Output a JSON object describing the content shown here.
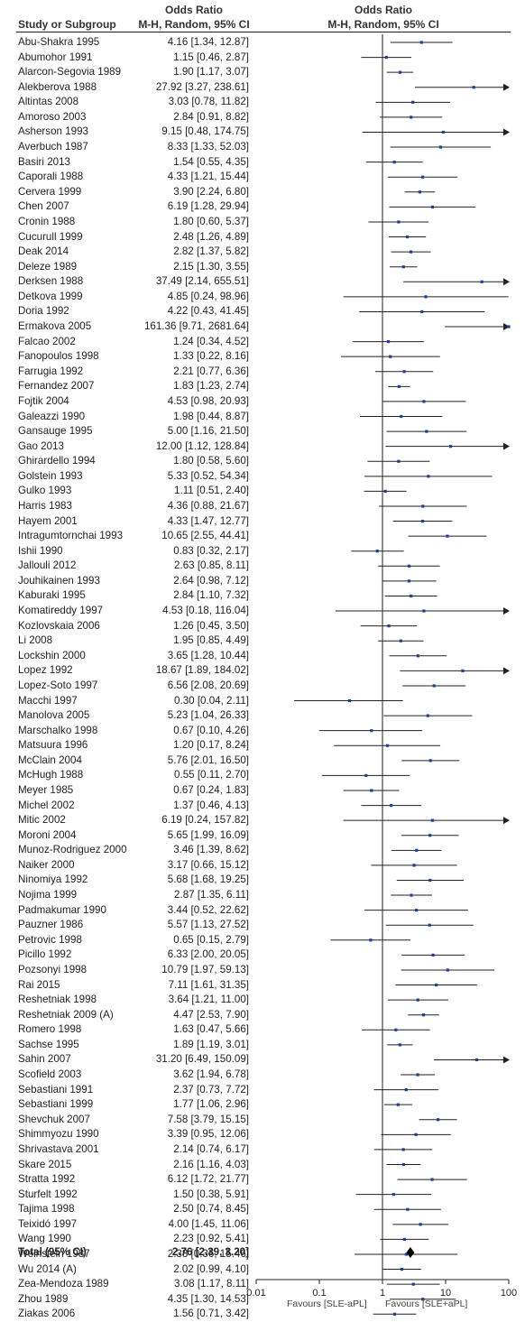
{
  "header": {
    "col_study": "Study or Subgroup",
    "col_or_title": "Odds Ratio",
    "col_or_method": "M-H, Random, 95% CI",
    "plot_title": "Odds Ratio",
    "plot_method": "M-H, Random, 95% CI"
  },
  "chart_data": {
    "type": "forest",
    "x_scale": "log",
    "xlim": [
      0.01,
      100
    ],
    "x_ticks": [
      "0.01",
      "0.1",
      "1",
      "10",
      "100"
    ],
    "favours_left": "Favours [SLE-aPL]",
    "favours_right": "Favours [SLE+aPL]",
    "studies": [
      {
        "label": "Abu-Shakra 1995",
        "or_text": "4.16 [1.34, 12.87]",
        "or": 4.16,
        "lo": 1.34,
        "hi": 12.87
      },
      {
        "label": "Abumohor 1991",
        "or_text": "1.15 [0.46, 2.87]",
        "or": 1.15,
        "lo": 0.46,
        "hi": 2.87
      },
      {
        "label": "Alarcon-Segovia 1989",
        "or_text": "1.90 [1.17, 3.07]",
        "or": 1.9,
        "lo": 1.17,
        "hi": 3.07
      },
      {
        "label": "Alekberova 1988",
        "or_text": "27.92 [3.27, 238.61]",
        "or": 27.92,
        "lo": 3.27,
        "hi": 238.61
      },
      {
        "label": "Altintas 2008",
        "or_text": "3.03 [0.78, 11.82]",
        "or": 3.03,
        "lo": 0.78,
        "hi": 11.82
      },
      {
        "label": "Amoroso 2003",
        "or_text": "2.84 [0.91, 8.82]",
        "or": 2.84,
        "lo": 0.91,
        "hi": 8.82
      },
      {
        "label": "Asherson 1993",
        "or_text": "9.15 [0.48, 174.75]",
        "or": 9.15,
        "lo": 0.48,
        "hi": 174.75
      },
      {
        "label": "Averbuch 1987",
        "or_text": "8.33 [1.33, 52.03]",
        "or": 8.33,
        "lo": 1.33,
        "hi": 52.03
      },
      {
        "label": "Basiri 2013",
        "or_text": "1.54 [0.55, 4.35]",
        "or": 1.54,
        "lo": 0.55,
        "hi": 4.35
      },
      {
        "label": "Caporali 1988",
        "or_text": "4.33 [1.21, 15.44]",
        "or": 4.33,
        "lo": 1.21,
        "hi": 15.44
      },
      {
        "label": "Cervera 1999",
        "or_text": "3.90 [2.24, 6.80]",
        "or": 3.9,
        "lo": 2.24,
        "hi": 6.8
      },
      {
        "label": "Chen 2007",
        "or_text": "6.19 [1.28, 29.94]",
        "or": 6.19,
        "lo": 1.28,
        "hi": 29.94
      },
      {
        "label": "Cronin 1988",
        "or_text": "1.80 [0.60, 5.37]",
        "or": 1.8,
        "lo": 0.6,
        "hi": 5.37
      },
      {
        "label": "Cucurull 1999",
        "or_text": "2.48 [1.26, 4.89]",
        "or": 2.48,
        "lo": 1.26,
        "hi": 4.89
      },
      {
        "label": "Deak 2014",
        "or_text": "2.82 [1.37, 5.82]",
        "or": 2.82,
        "lo": 1.37,
        "hi": 5.82
      },
      {
        "label": "Deleze 1989",
        "or_text": "2.15 [1.30, 3.55]",
        "or": 2.15,
        "lo": 1.3,
        "hi": 3.55
      },
      {
        "label": "Derksen 1988",
        "or_text": "37.49 [2.14, 655.51]",
        "or": 37.49,
        "lo": 2.14,
        "hi": 655.51
      },
      {
        "label": "Detkova 1999",
        "or_text": "4.85 [0.24, 98.96]",
        "or": 4.85,
        "lo": 0.24,
        "hi": 98.96
      },
      {
        "label": "Doria 1992",
        "or_text": "4.22 [0.43, 41.45]",
        "or": 4.22,
        "lo": 0.43,
        "hi": 41.45
      },
      {
        "label": "Ermakova 2005",
        "or_text": "161.36 [9.71, 2681.64]",
        "or": 161.36,
        "lo": 9.71,
        "hi": 2681.64
      },
      {
        "label": "Falcao 2002",
        "or_text": "1.24 [0.34, 4.52]",
        "or": 1.24,
        "lo": 0.34,
        "hi": 4.52
      },
      {
        "label": "Fanopoulos 1998",
        "or_text": "1.33 [0.22, 8.16]",
        "or": 1.33,
        "lo": 0.22,
        "hi": 8.16
      },
      {
        "label": "Farrugia 1992",
        "or_text": "2.21 [0.77, 6.36]",
        "or": 2.21,
        "lo": 0.77,
        "hi": 6.36
      },
      {
        "label": "Fernandez 2007",
        "or_text": "1.83 [1.23, 2.74]",
        "or": 1.83,
        "lo": 1.23,
        "hi": 2.74
      },
      {
        "label": "Fojtik 2004",
        "or_text": "4.53 [0.98, 20.93]",
        "or": 4.53,
        "lo": 0.98,
        "hi": 20.93
      },
      {
        "label": "Galeazzi 1990",
        "or_text": "1.98 [0.44, 8.87]",
        "or": 1.98,
        "lo": 0.44,
        "hi": 8.87
      },
      {
        "label": "Gansauge 1995",
        "or_text": "5.00 [1.16, 21.50]",
        "or": 5.0,
        "lo": 1.16,
        "hi": 21.5
      },
      {
        "label": "Gao 2013",
        "or_text": "12.00 [1.12, 128.84]",
        "or": 12.0,
        "lo": 1.12,
        "hi": 128.84
      },
      {
        "label": "Ghirardello 1994",
        "or_text": "1.80 [0.58, 5.60]",
        "or": 1.8,
        "lo": 0.58,
        "hi": 5.6
      },
      {
        "label": "Golstein 1993",
        "or_text": "5.33 [0.52, 54.34]",
        "or": 5.33,
        "lo": 0.52,
        "hi": 54.34
      },
      {
        "label": "Gulko 1993",
        "or_text": "1.11 [0.51, 2.40]",
        "or": 1.11,
        "lo": 0.51,
        "hi": 2.4
      },
      {
        "label": "Harris 1983",
        "or_text": "4.36 [0.88, 21.67]",
        "or": 4.36,
        "lo": 0.88,
        "hi": 21.67
      },
      {
        "label": "Hayem 2001",
        "or_text": "4.33 [1.47, 12.77]",
        "or": 4.33,
        "lo": 1.47,
        "hi": 12.77
      },
      {
        "label": "Intragumtornchai 1993",
        "or_text": "10.65 [2.55, 44.41]",
        "or": 10.65,
        "lo": 2.55,
        "hi": 44.41
      },
      {
        "label": "Ishii 1990",
        "or_text": "0.83 [0.32, 2.17]",
        "or": 0.83,
        "lo": 0.32,
        "hi": 2.17
      },
      {
        "label": "Jallouli 2012",
        "or_text": "2.63 [0.85, 8.11]",
        "or": 2.63,
        "lo": 0.85,
        "hi": 8.11
      },
      {
        "label": "Jouhikainen 1993",
        "or_text": "2.64 [0.98, 7.12]",
        "or": 2.64,
        "lo": 0.98,
        "hi": 7.12
      },
      {
        "label": "Kaburaki 1995",
        "or_text": "2.84 [1.10, 7.32]",
        "or": 2.84,
        "lo": 1.1,
        "hi": 7.32
      },
      {
        "label": "Komatireddy 1997",
        "or_text": "4.53 [0.18, 116.04]",
        "or": 4.53,
        "lo": 0.18,
        "hi": 116.04
      },
      {
        "label": "Kozlovskaia 2006",
        "or_text": "1.26 [0.45, 3.50]",
        "or": 1.26,
        "lo": 0.45,
        "hi": 3.5
      },
      {
        "label": "Li 2008",
        "or_text": "1.95 [0.85, 4.49]",
        "or": 1.95,
        "lo": 0.85,
        "hi": 4.49
      },
      {
        "label": "Lockshin 2000",
        "or_text": "3.65 [1.28, 10.44]",
        "or": 3.65,
        "lo": 1.28,
        "hi": 10.44
      },
      {
        "label": "Lopez 1992",
        "or_text": "18.67 [1.89, 184.02]",
        "or": 18.67,
        "lo": 1.89,
        "hi": 184.02
      },
      {
        "label": "Lopez-Soto 1997",
        "or_text": "6.56 [2.08, 20.69]",
        "or": 6.56,
        "lo": 2.08,
        "hi": 20.69
      },
      {
        "label": "Macchi 1997",
        "or_text": "0.30 [0.04, 2.11]",
        "or": 0.3,
        "lo": 0.04,
        "hi": 2.11
      },
      {
        "label": "Manolova 2005",
        "or_text": "5.23 [1.04, 26.33]",
        "or": 5.23,
        "lo": 1.04,
        "hi": 26.33
      },
      {
        "label": "Marschalko 1998",
        "or_text": "0.67 [0.10, 4.26]",
        "or": 0.67,
        "lo": 0.1,
        "hi": 4.26
      },
      {
        "label": "Matsuura 1996",
        "or_text": "1.20 [0.17, 8.24]",
        "or": 1.2,
        "lo": 0.17,
        "hi": 8.24
      },
      {
        "label": "McClain 2004",
        "or_text": "5.76 [2.01, 16.50]",
        "or": 5.76,
        "lo": 2.01,
        "hi": 16.5
      },
      {
        "label": "McHugh 1988",
        "or_text": "0.55 [0.11, 2.70]",
        "or": 0.55,
        "lo": 0.11,
        "hi": 2.7
      },
      {
        "label": "Meyer 1985",
        "or_text": "0.67 [0.24, 1.83]",
        "or": 0.67,
        "lo": 0.24,
        "hi": 1.83
      },
      {
        "label": "Michel 2002",
        "or_text": "1.37 [0.46, 4.13]",
        "or": 1.37,
        "lo": 0.46,
        "hi": 4.13
      },
      {
        "label": "Mitic 2002",
        "or_text": "6.19 [0.24, 157.82]",
        "or": 6.19,
        "lo": 0.24,
        "hi": 157.82
      },
      {
        "label": "Moroni 2004",
        "or_text": "5.65 [1.99, 16.09]",
        "or": 5.65,
        "lo": 1.99,
        "hi": 16.09
      },
      {
        "label": "Munoz-Rodriguez 2000",
        "or_text": "3.46 [1.39, 8.62]",
        "or": 3.46,
        "lo": 1.39,
        "hi": 8.62
      },
      {
        "label": "Naiker 2000",
        "or_text": "3.17 [0.66, 15.12]",
        "or": 3.17,
        "lo": 0.66,
        "hi": 15.12
      },
      {
        "label": "Ninomiya 1992",
        "or_text": "5.68 [1.68, 19.25]",
        "or": 5.68,
        "lo": 1.68,
        "hi": 19.25
      },
      {
        "label": "Nojima 1999",
        "or_text": "2.87 [1.35, 6.11]",
        "or": 2.87,
        "lo": 1.35,
        "hi": 6.11
      },
      {
        "label": "Padmakumar 1990",
        "or_text": "3.44 [0.52, 22.62]",
        "or": 3.44,
        "lo": 0.52,
        "hi": 22.62
      },
      {
        "label": "Pauzner 1986",
        "or_text": "5.57 [1.13, 27.52]",
        "or": 5.57,
        "lo": 1.13,
        "hi": 27.52
      },
      {
        "label": "Petrovic 1998",
        "or_text": "0.65 [0.15, 2.79]",
        "or": 0.65,
        "lo": 0.15,
        "hi": 2.79
      },
      {
        "label": "Picillo 1992",
        "or_text": "6.33 [2.00, 20.05]",
        "or": 6.33,
        "lo": 2.0,
        "hi": 20.05
      },
      {
        "label": "Pozsonyi 1998",
        "or_text": "10.79 [1.97, 59.13]",
        "or": 10.79,
        "lo": 1.97,
        "hi": 59.13
      },
      {
        "label": "Rai 2015",
        "or_text": "7.11 [1.61, 31.35]",
        "or": 7.11,
        "lo": 1.61,
        "hi": 31.35
      },
      {
        "label": "Reshetniak 1998",
        "or_text": "3.64 [1.21, 11.00]",
        "or": 3.64,
        "lo": 1.21,
        "hi": 11.0
      },
      {
        "label": "Reshetniak 2009 (A)",
        "or_text": "4.47 [2.53, 7.90]",
        "or": 4.47,
        "lo": 2.53,
        "hi": 7.9
      },
      {
        "label": "Romero 1998",
        "or_text": "1.63 [0.47, 5.66]",
        "or": 1.63,
        "lo": 0.47,
        "hi": 5.66
      },
      {
        "label": "Sachse 1995",
        "or_text": "1.89 [1.19, 3.01]",
        "or": 1.89,
        "lo": 1.19,
        "hi": 3.01
      },
      {
        "label": "Sahin 2007",
        "or_text": "31.20 [6.49, 150.09]",
        "or": 31.2,
        "lo": 6.49,
        "hi": 150.09
      },
      {
        "label": "Scofield 2003",
        "or_text": "3.62 [1.94, 6.78]",
        "or": 3.62,
        "lo": 1.94,
        "hi": 6.78
      },
      {
        "label": "Sebastiani 1991",
        "or_text": "2.37 [0.73, 7.72]",
        "or": 2.37,
        "lo": 0.73,
        "hi": 7.72
      },
      {
        "label": "Sebastiani 1999",
        "or_text": "1.77 [1.06, 2.96]",
        "or": 1.77,
        "lo": 1.06,
        "hi": 2.96
      },
      {
        "label": "Shevchuk 2007",
        "or_text": "7.58 [3.79, 15.15]",
        "or": 7.58,
        "lo": 3.79,
        "hi": 15.15
      },
      {
        "label": "Shimmyozu 1990",
        "or_text": "3.39 [0.95, 12.06]",
        "or": 3.39,
        "lo": 0.95,
        "hi": 12.06
      },
      {
        "label": "Shrivastava 2001",
        "or_text": "2.14 [0.74, 6.17]",
        "or": 2.14,
        "lo": 0.74,
        "hi": 6.17
      },
      {
        "label": "Skare 2015",
        "or_text": "2.16 [1.16, 4.03]",
        "or": 2.16,
        "lo": 1.16,
        "hi": 4.03
      },
      {
        "label": "Stratta 1992",
        "or_text": "6.12 [1.72, 21.77]",
        "or": 6.12,
        "lo": 1.72,
        "hi": 21.77
      },
      {
        "label": "Sturfelt 1992",
        "or_text": "1.50 [0.38, 5.91]",
        "or": 1.5,
        "lo": 0.38,
        "hi": 5.91
      },
      {
        "label": "Tajima 1998",
        "or_text": "2.50 [0.74, 8.45]",
        "or": 2.5,
        "lo": 0.74,
        "hi": 8.45
      },
      {
        "label": "Teixidó 1997",
        "or_text": "4.00 [1.45, 11.06]",
        "or": 4.0,
        "lo": 1.45,
        "hi": 11.06
      },
      {
        "label": "Wang 1990",
        "or_text": "2.23 [0.92, 5.41]",
        "or": 2.23,
        "lo": 0.92,
        "hi": 5.41
      },
      {
        "label": "Weinstein 1987",
        "or_text": "2.38 [0.36, 15.46]",
        "or": 2.38,
        "lo": 0.36,
        "hi": 15.46
      },
      {
        "label": "Wu 2014 (A)",
        "or_text": "2.02 [0.99, 4.10]",
        "or": 2.02,
        "lo": 0.99,
        "hi": 4.1
      },
      {
        "label": "Zea-Mendoza 1989",
        "or_text": "3.08 [1.17, 8.11]",
        "or": 3.08,
        "lo": 1.17,
        "hi": 8.11
      },
      {
        "label": "Zhou 1989",
        "or_text": "4.35 [1.30, 14.53]",
        "or": 4.35,
        "lo": 1.3,
        "hi": 14.53
      },
      {
        "label": "Ziakas 2006",
        "or_text": "1.56 [0.71, 3.42]",
        "or": 1.56,
        "lo": 0.71,
        "hi": 3.42
      }
    ],
    "total": {
      "label": "Total (95% CI)",
      "or_text": "2.76 [2.39, 3.20]",
      "or": 2.76,
      "lo": 2.39,
      "hi": 3.2
    }
  },
  "colors": {
    "point": "#1f3f9a",
    "line": "#222222",
    "diamond": "#000000"
  }
}
